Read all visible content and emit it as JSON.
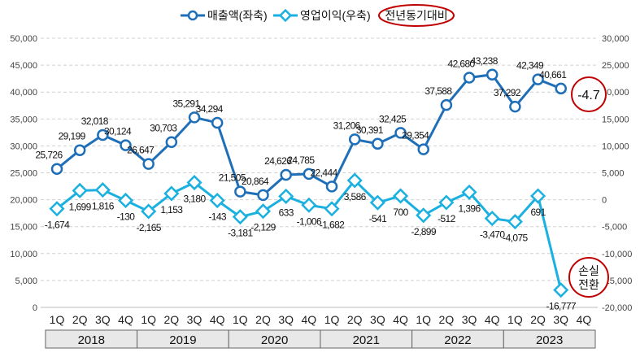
{
  "legend": {
    "revenue": "매출액(좌축)",
    "profit": "영업이익(우축)",
    "yoy": "전년동기대비"
  },
  "annotations": {
    "yoy_value": "-4.7",
    "loss_line1": "손실",
    "loss_line2": "전환"
  },
  "colors": {
    "revenue": "#1f6fb8",
    "profit": "#1ab0e0",
    "circle": "#c00000",
    "year_bg": "#e8e8e8"
  },
  "chart_data": {
    "type": "line",
    "title": "",
    "quarters": [
      "1Q",
      "2Q",
      "3Q",
      "4Q",
      "1Q",
      "2Q",
      "3Q",
      "4Q",
      "1Q",
      "2Q",
      "3Q",
      "4Q",
      "1Q",
      "2Q",
      "3Q",
      "4Q",
      "1Q",
      "2Q",
      "3Q",
      "4Q",
      "1Q",
      "2Q",
      "3Q",
      "4Q"
    ],
    "years": [
      "2018",
      "2019",
      "2020",
      "2021",
      "2022",
      "2023"
    ],
    "left_axis": {
      "min": 0,
      "max": 50000,
      "step": 5000,
      "ticks": [
        "0",
        "5,000",
        "10,000",
        "15,000",
        "20,000",
        "25,000",
        "30,000",
        "35,000",
        "40,000",
        "45,000",
        "50,000"
      ]
    },
    "right_axis": {
      "min": -20000,
      "max": 30000,
      "step": 5000,
      "ticks": [
        "-20,000",
        "-15,000",
        "-10,000",
        "-5,000",
        "0",
        "5,000",
        "10,000",
        "15,000",
        "20,000",
        "25,000",
        "30,000"
      ]
    },
    "series": [
      {
        "name": "매출액(좌축)",
        "axis": "left",
        "values": [
          25726,
          29199,
          32018,
          30124,
          26647,
          30703,
          35291,
          34294,
          21505,
          20864,
          24626,
          24785,
          22444,
          31206,
          30391,
          32425,
          29354,
          37588,
          42680,
          43238,
          37292,
          42349,
          40661
        ],
        "labels": [
          "25,726",
          "29,199",
          "32,018",
          "30,124",
          "26,647",
          "30,703",
          "35,291",
          "34,294",
          "21,505",
          "20,864",
          "24,626",
          "24,785",
          "22,444",
          "31,206",
          "30,391",
          "32,425",
          "29,354",
          "37,588",
          "42,680",
          "43,238",
          "37,292",
          "42,349",
          "40,661"
        ]
      },
      {
        "name": "영업이익(우축)",
        "axis": "right",
        "values": [
          -1674,
          1699,
          1816,
          -130,
          -2165,
          1153,
          3180,
          -143,
          -3181,
          -2129,
          633,
          -1006,
          -1682,
          3586,
          -541,
          700,
          -2899,
          -512,
          1396,
          -3470,
          -4075,
          691,
          -16777
        ],
        "labels": [
          "-1,674",
          "1,699",
          "1,816",
          "-130",
          "-2,165",
          "1,153",
          "3,180",
          "-143",
          "-3,181",
          "-2,129",
          "633",
          "-1,006",
          "-1,682",
          "3,586",
          "-541",
          "700",
          "-2,899",
          "-512",
          "1,396",
          "-3,470",
          "-4,075",
          "691",
          "-16,777"
        ]
      }
    ]
  }
}
